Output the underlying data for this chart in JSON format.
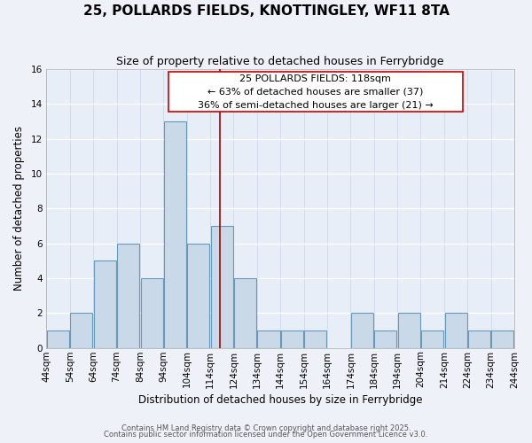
{
  "title": "25, POLLARDS FIELDS, KNOTTINGLEY, WF11 8TA",
  "subtitle": "Size of property relative to detached houses in Ferrybridge",
  "xlabel": "Distribution of detached houses by size in Ferrybridge",
  "ylabel": "Number of detached properties",
  "bin_edges": [
    44,
    54,
    64,
    74,
    84,
    94,
    104,
    114,
    124,
    134,
    144,
    154,
    164,
    174,
    184,
    194,
    204,
    214,
    224,
    234,
    244
  ],
  "counts": [
    1,
    2,
    5,
    6,
    4,
    13,
    6,
    7,
    4,
    1,
    1,
    1,
    0,
    2,
    1,
    2,
    1,
    2,
    1,
    1
  ],
  "bar_color": "#c9d9e8",
  "bar_edge_color": "#6699bb",
  "property_size": 118,
  "vline_color": "#aa0000",
  "annotation_line1": "25 POLLARDS FIELDS: 118sqm",
  "annotation_line2": "← 63% of detached houses are smaller (37)",
  "annotation_line3": "36% of semi-detached houses are larger (21) →",
  "annotation_box_edge": "#cc0000",
  "ylim": [
    0,
    16
  ],
  "yticks": [
    0,
    2,
    4,
    6,
    8,
    10,
    12,
    14,
    16
  ],
  "background_color": "#eef2f8",
  "plot_bg_color": "#e8eef8",
  "grid_color": "#c8d4e8",
  "footer_line1": "Contains HM Land Registry data © Crown copyright and database right 2025.",
  "footer_line2": "Contains public sector information licensed under the Open Government Licence v3.0.",
  "title_fontsize": 11,
  "subtitle_fontsize": 9,
  "axis_label_fontsize": 8.5,
  "tick_fontsize": 7.5,
  "annotation_fontsize": 8,
  "footer_fontsize": 6
}
